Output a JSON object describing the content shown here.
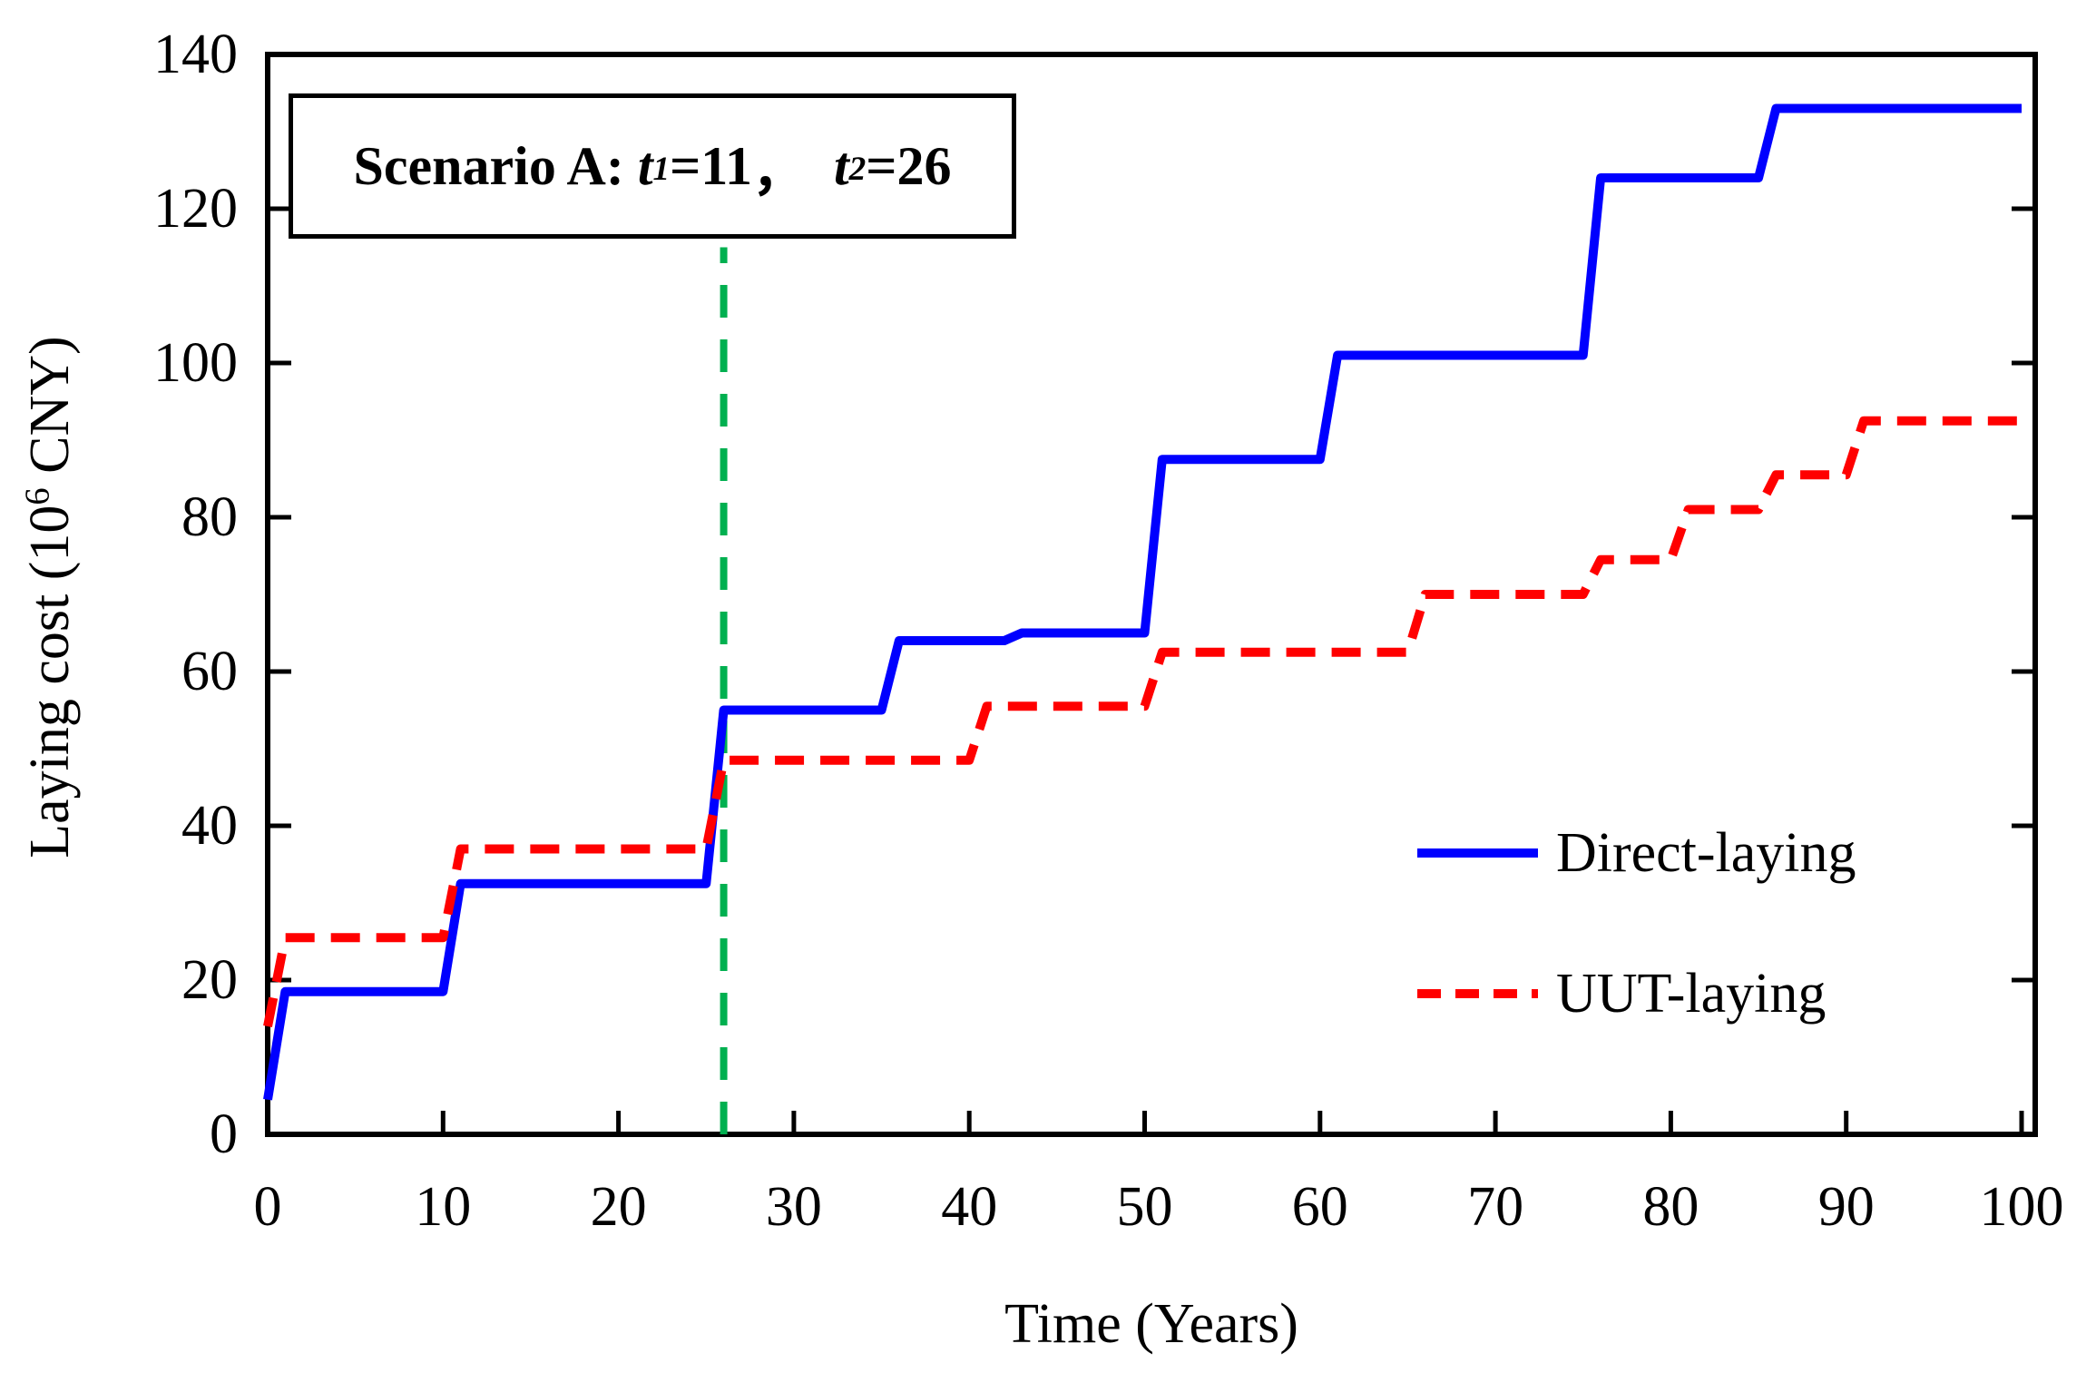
{
  "figure": {
    "background": "#ffffff",
    "frame_color": "#000000"
  },
  "chart_data": {
    "type": "line",
    "title": "",
    "xlabel": "Time (Years)",
    "ylabel_prefix": "Laying cost (10",
    "ylabel_sup": "6",
    "ylabel_suffix": " CNY)",
    "xlim": [
      0,
      100
    ],
    "ylim": [
      0,
      140
    ],
    "xticks": [
      0,
      10,
      20,
      30,
      40,
      50,
      60,
      70,
      80,
      90,
      100
    ],
    "yticks": [
      0,
      20,
      40,
      60,
      80,
      100,
      120,
      140
    ],
    "grid": false,
    "legend_position": "center-right",
    "annotation": {
      "prefix": "Scenario A: ",
      "var1": "t",
      "sub1": "1",
      "val1": "=11",
      "separator": "，",
      "var2": "t",
      "sub2": "2",
      "val2": "=26"
    },
    "vline": {
      "x": 26,
      "y_from": 0,
      "y_to": 115,
      "color": "#00B050",
      "style": "dashed"
    },
    "series": [
      {
        "name": "Direct-laying",
        "color": "#0000ff",
        "style": "solid",
        "points": [
          [
            0,
            4.5
          ],
          [
            1,
            18.5
          ],
          [
            10,
            18.5
          ],
          [
            11,
            32.5
          ],
          [
            25,
            32.5
          ],
          [
            26,
            55
          ],
          [
            35,
            55
          ],
          [
            36,
            64
          ],
          [
            42,
            64
          ],
          [
            43,
            65
          ],
          [
            50,
            65
          ],
          [
            51,
            87.5
          ],
          [
            60,
            87.5
          ],
          [
            61,
            101
          ],
          [
            75,
            101
          ],
          [
            76,
            124
          ],
          [
            85,
            124
          ],
          [
            86,
            133
          ],
          [
            100,
            133
          ]
        ]
      },
      {
        "name": "UUT-laying",
        "color": "#ff0000",
        "style": "dashed",
        "points": [
          [
            0,
            14
          ],
          [
            1,
            25.5
          ],
          [
            10,
            25.5
          ],
          [
            11,
            37
          ],
          [
            25,
            37
          ],
          [
            26,
            48.5
          ],
          [
            40,
            48.5
          ],
          [
            41,
            55.5
          ],
          [
            50,
            55.5
          ],
          [
            51,
            62.5
          ],
          [
            65,
            62.5
          ],
          [
            66,
            70
          ],
          [
            75,
            70
          ],
          [
            76,
            74.5
          ],
          [
            80,
            74.5
          ],
          [
            81,
            81
          ],
          [
            85,
            81
          ],
          [
            86,
            85.5
          ],
          [
            90,
            85.5
          ],
          [
            91,
            92.5
          ],
          [
            100,
            92.5
          ]
        ]
      }
    ]
  }
}
